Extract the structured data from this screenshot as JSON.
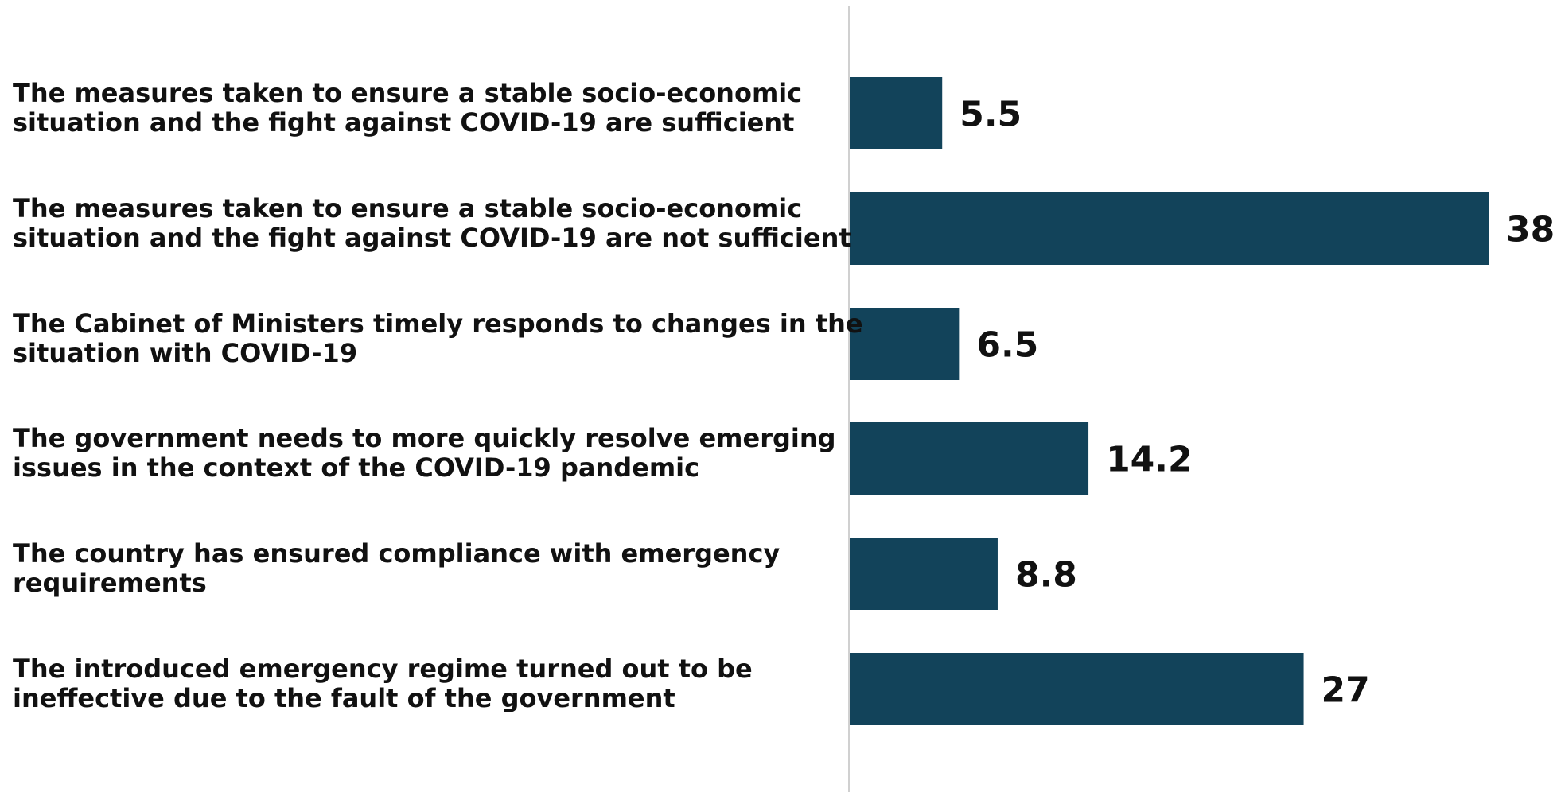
{
  "chart_data": {
    "type": "bar",
    "orientation": "horizontal",
    "categories": [
      [
        "The measures taken to ensure a stable socio-economic",
        "situation and the fight against COVID-19 are sufficient"
      ],
      [
        "The measures taken to ensure a stable socio-economic",
        "situation and the fight against COVID-19 are not sufficient"
      ],
      [
        "The Cabinet of Ministers timely responds to changes in the",
        "situation with COVID-19"
      ],
      [
        "The government needs to more quickly resolve emerging",
        "issues in the context of the COVID-19 pandemic"
      ],
      [
        "The country has ensured compliance with emergency",
        "requirements"
      ],
      [
        "The introduced emergency regime turned out to be",
        "ineffective due to the fault of the government"
      ]
    ],
    "values": [
      5.5,
      38,
      6.5,
      14.2,
      8.8,
      27
    ],
    "value_labels": [
      "5.5",
      "38",
      "6.5",
      "14.2",
      "8.8",
      "27"
    ],
    "xlim": [
      0,
      38
    ],
    "bar_color": "#12435a",
    "axis_color": "#d0d0d0",
    "grid": false,
    "legend": "none"
  }
}
